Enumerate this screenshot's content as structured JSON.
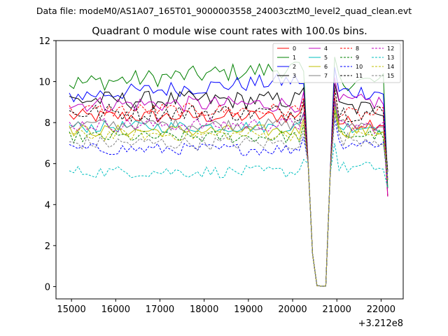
{
  "chart_data": {
    "type": "line",
    "suptitle": "Data file: modeM0/AS1A07_165T01_9000003558_24003cztM0_level2_quad_clean.evt",
    "title": "Quadrant 0 module wise count rates with 100.0s bins.",
    "xlabel": "",
    "ylabel": "",
    "x_offset_label": "+3.212e8",
    "xlim": [
      14650,
      22500
    ],
    "ylim": [
      -0.6,
      12
    ],
    "xticks": [
      15000,
      16000,
      17000,
      18000,
      19000,
      20000,
      21000,
      22000
    ],
    "yticks": [
      0,
      2,
      4,
      6,
      8,
      10,
      12
    ],
    "legend_position": "upper-right",
    "legend_columns": 4,
    "bin_seconds": 100,
    "x_start": 14950,
    "x_step": 100,
    "gap": {
      "start_index": 54,
      "end_index": 58,
      "low_values": [
        6.0,
        1.6,
        0.05,
        0.02,
        0.02,
        5.5
      ]
    },
    "series": [
      {
        "name": "0",
        "color": "#ff0000",
        "dash": "solid",
        "base": 8.3,
        "noise": 0.35,
        "post": 8.0
      },
      {
        "name": "1",
        "color": "#008000",
        "dash": "solid",
        "base": 9.9,
        "noise": 0.45,
        "post": 10.0
      },
      {
        "name": "2",
        "color": "#0000ff",
        "dash": "solid",
        "base": 9.3,
        "noise": 0.4,
        "post": 9.5
      },
      {
        "name": "3",
        "color": "#000000",
        "dash": "solid",
        "base": 9.1,
        "noise": 0.45,
        "post": 8.7
      },
      {
        "name": "4",
        "color": "#bf00bf",
        "dash": "solid",
        "base": 8.9,
        "noise": 0.4,
        "post": 9.0
      },
      {
        "name": "5",
        "color": "#00bfbf",
        "dash": "solid",
        "base": 7.8,
        "noise": 0.3,
        "post": 7.8
      },
      {
        "name": "6",
        "color": "#bfbf00",
        "dash": "solid",
        "base": 7.6,
        "noise": 0.3,
        "post": 7.6
      },
      {
        "name": "7",
        "color": "#808080",
        "dash": "solid",
        "base": 7.9,
        "noise": 0.3,
        "post": 7.9
      },
      {
        "name": "8",
        "color": "#ff0000",
        "dash": "dashed",
        "base": 8.6,
        "noise": 0.35,
        "post": 8.4
      },
      {
        "name": "9",
        "color": "#008000",
        "dash": "dashed",
        "base": 7.3,
        "noise": 0.3,
        "post": 7.4
      },
      {
        "name": "10",
        "color": "#0000ff",
        "dash": "dashed",
        "base": 6.7,
        "noise": 0.3,
        "post": 7.0
      },
      {
        "name": "11",
        "color": "#000000",
        "dash": "dashed",
        "base": 8.5,
        "noise": 0.45,
        "post": 8.5
      },
      {
        "name": "12",
        "color": "#bf00bf",
        "dash": "dashed",
        "base": 7.9,
        "noise": 0.35,
        "post": 7.8
      },
      {
        "name": "13",
        "color": "#00bfbf",
        "dash": "dashed",
        "base": 5.6,
        "noise": 0.3,
        "post": 5.8
      },
      {
        "name": "14",
        "color": "#bfbf00",
        "dash": "dashed",
        "base": 7.4,
        "noise": 0.3,
        "post": 7.4
      },
      {
        "name": "15",
        "color": "#808080",
        "dash": "dashed",
        "base": 7.0,
        "noise": 0.35,
        "post": 7.2
      }
    ]
  }
}
